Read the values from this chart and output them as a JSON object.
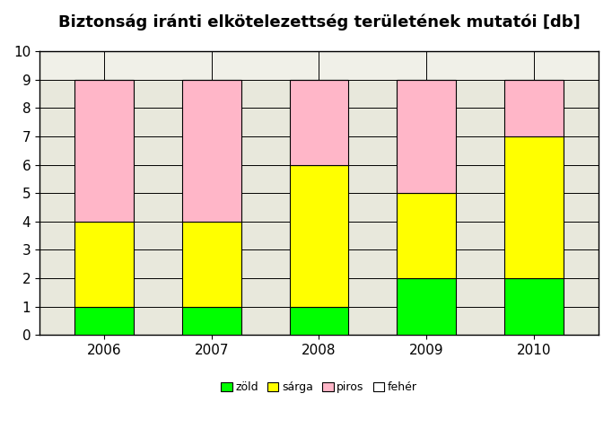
{
  "title": "Biztonság iránti elkötelezettség területének mutatói [db]",
  "categories": [
    "2006",
    "2007",
    "2008",
    "2009",
    "2010"
  ],
  "zold": [
    1,
    1,
    1,
    2,
    2
  ],
  "sarga": [
    3,
    3,
    5,
    3,
    5
  ],
  "piros": [
    5,
    5,
    3,
    4,
    2
  ],
  "feher": [
    0,
    0,
    0,
    0,
    0
  ],
  "color_zold": "#00FF00",
  "color_sarga": "#FFFF00",
  "color_piros": "#FFB6C8",
  "color_feher": "#FFFFFF",
  "ylim": [
    0,
    10
  ],
  "yticks": [
    0,
    1,
    2,
    3,
    4,
    5,
    6,
    7,
    8,
    9,
    10
  ],
  "background_fig": "#FFFFFF",
  "background_plot": "#E8E8DC",
  "background_above9": "#F0F0E8",
  "bar_width": 0.55,
  "legend_labels": [
    "zöld",
    "sárga",
    "piros",
    "fehér"
  ],
  "title_fontsize": 13
}
